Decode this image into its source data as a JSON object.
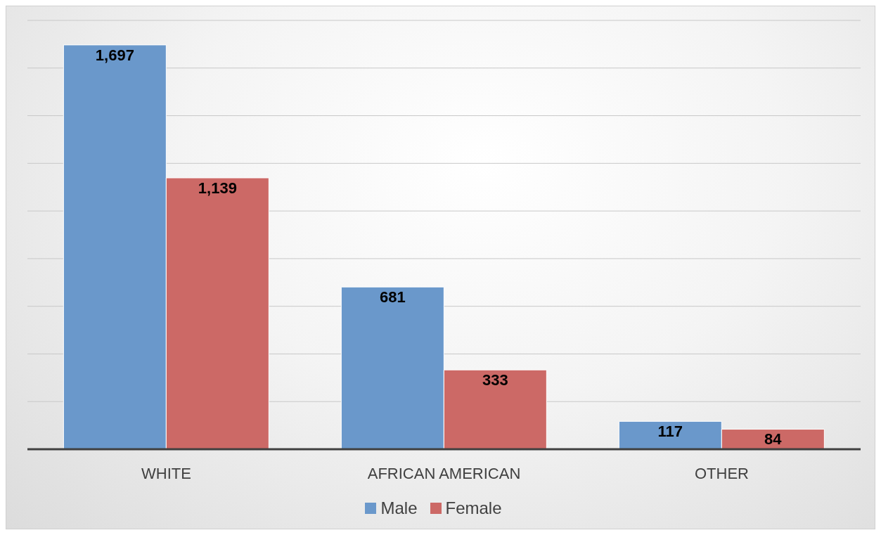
{
  "chart_data": {
    "type": "bar",
    "categories": [
      "WHITE",
      "AFRICAN AMERICAN",
      "OTHER"
    ],
    "series": [
      {
        "name": "Male",
        "color": "#6a98cb",
        "values": [
          1697,
          681,
          117
        ],
        "value_labels": [
          "1,697",
          "681",
          "117"
        ]
      },
      {
        "name": "Female",
        "color": "#cc6966",
        "values": [
          1139,
          333,
          84
        ],
        "value_labels": [
          "1,139",
          "333",
          "84"
        ]
      }
    ],
    "tick_labels": "x",
    "grid": "y",
    "legend": "bottom"
  }
}
